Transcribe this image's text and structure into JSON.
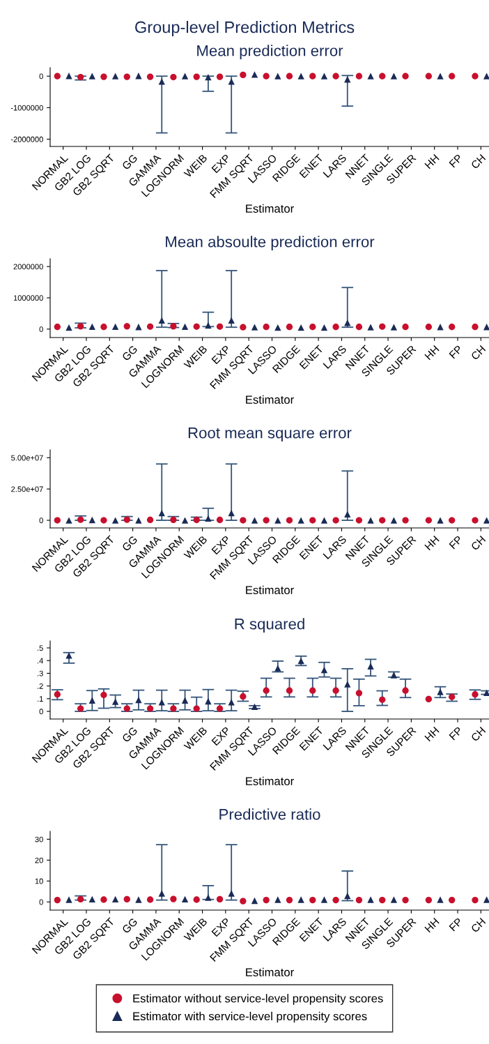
{
  "chart_data": [
    {
      "type": "scatter",
      "title": "Group-level Prediction Metrics",
      "subtitle": "Mean prediction error",
      "xlabel": "Estimator",
      "categories": [
        "NORMAL",
        "GB2 LOG",
        "GB2 SQRT",
        "GG",
        "GAMMA",
        "LOGNORM",
        "WEIB",
        "EXP",
        "FMM SQRT",
        "LASSO",
        "RIDGE",
        "ENET",
        "LARS",
        "NNET",
        "SINGLE",
        "SUPER",
        "HH",
        "FP",
        "CH"
      ],
      "ylim": [
        -2230000,
        270000
      ],
      "yticks": [
        0,
        -1000000,
        -2000000
      ],
      "grid": false,
      "legend": false,
      "series": [
        {
          "color": "#c8102e",
          "marker": "circle",
          "values": [
            0,
            -30000,
            -20000,
            -20000,
            -20000,
            -30000,
            -20000,
            -20000,
            40000,
            0,
            0,
            0,
            0,
            0,
            0,
            0,
            0,
            0,
            0
          ],
          "errors": [
            null,
            [
              -120000,
              0
            ],
            null,
            null,
            null,
            null,
            null,
            null,
            null,
            null,
            null,
            null,
            null,
            null,
            null,
            null,
            null,
            null,
            null
          ]
        },
        {
          "color": "#1a2b57",
          "marker": "triangle",
          "values": [
            10000,
            0,
            0,
            10000,
            -170000,
            0,
            -30000,
            -170000,
            50000,
            0,
            0,
            0,
            -100000,
            0,
            0,
            null,
            0,
            null,
            0
          ],
          "errors": [
            null,
            null,
            null,
            null,
            [
              -1800000,
              0
            ],
            null,
            [
              -480000,
              0
            ],
            [
              -1800000,
              0
            ],
            null,
            null,
            null,
            null,
            [
              -950000,
              20000
            ],
            null,
            null,
            null,
            null,
            null,
            null
          ]
        }
      ]
    },
    {
      "type": "scatter",
      "title": "Mean absoulte prediction error",
      "xlabel": "Estimator",
      "categories": [
        "NORMAL",
        "GB2 LOG",
        "GB2 SQRT",
        "GG",
        "GAMMA",
        "LOGNORM",
        "WEIB",
        "EXP",
        "FMM SQRT",
        "LASSO",
        "RIDGE",
        "ENET",
        "LARS",
        "NNET",
        "SINGLE",
        "SUPER",
        "HH",
        "FP",
        "CH"
      ],
      "ylim": [
        -270000,
        2250000
      ],
      "yticks": [
        0,
        1000000,
        2000000
      ],
      "grid": false,
      "legend": false,
      "series": [
        {
          "color": "#c8102e",
          "marker": "circle",
          "values": [
            70000,
            90000,
            70000,
            90000,
            80000,
            90000,
            80000,
            80000,
            60000,
            70000,
            70000,
            70000,
            70000,
            70000,
            80000,
            70000,
            70000,
            70000,
            70000
          ],
          "errors": [
            null,
            [
              40000,
              190000
            ],
            null,
            null,
            null,
            [
              50000,
              180000
            ],
            null,
            null,
            null,
            null,
            null,
            null,
            null,
            null,
            null,
            null,
            null,
            null,
            null
          ]
        },
        {
          "color": "#1a2b57",
          "marker": "triangle",
          "values": [
            50000,
            80000,
            80000,
            70000,
            280000,
            80000,
            120000,
            280000,
            60000,
            50000,
            50000,
            50000,
            200000,
            60000,
            60000,
            null,
            70000,
            null,
            70000
          ],
          "errors": [
            null,
            null,
            null,
            null,
            [
              60000,
              1870000
            ],
            null,
            [
              80000,
              540000
            ],
            [
              60000,
              1870000
            ],
            null,
            null,
            null,
            null,
            [
              60000,
              1330000
            ],
            null,
            null,
            null,
            null,
            null,
            null
          ]
        }
      ]
    },
    {
      "type": "scatter",
      "title": "Root mean square error",
      "xlabel": "Estimator",
      "categories": [
        "NORMAL",
        "GB2 LOG",
        "GB2 SQRT",
        "GG",
        "GAMMA",
        "LOGNORM",
        "WEIB",
        "EXP",
        "FMM SQRT",
        "LASSO",
        "RIDGE",
        "ENET",
        "LARS",
        "NNET",
        "SINGLE",
        "SUPER",
        "HH",
        "FP",
        "CH"
      ],
      "ylim": [
        -6100000,
        56300000
      ],
      "yticks": [
        0,
        {
          "value": 25000000,
          "label": "2.50e+07"
        },
        {
          "value": 50000000,
          "label": "5.00e+07"
        }
      ],
      "grid": false,
      "legend": false,
      "series": [
        {
          "color": "#c8102e",
          "marker": "circle",
          "values": [
            0,
            500000,
            0,
            500000,
            300000,
            400000,
            300000,
            300000,
            0,
            0,
            0,
            0,
            0,
            0,
            0,
            0,
            0,
            0,
            0
          ],
          "errors": [
            null,
            [
              0,
              3500000
            ],
            null,
            [
              0,
              3000000
            ],
            null,
            [
              0,
              3000000
            ],
            [
              0,
              2500000
            ],
            null,
            null,
            null,
            null,
            null,
            null,
            null,
            null,
            null,
            null,
            null,
            null
          ]
        },
        {
          "color": "#1a2b57",
          "marker": "triangle",
          "values": [
            0,
            300000,
            0,
            0,
            5800000,
            0,
            1500000,
            5800000,
            0,
            0,
            0,
            0,
            4800000,
            0,
            0,
            null,
            0,
            null,
            0
          ],
          "errors": [
            null,
            null,
            null,
            null,
            [
              0,
              45000000
            ],
            null,
            [
              0,
              9600000
            ],
            [
              0,
              45000000
            ],
            null,
            null,
            null,
            null,
            [
              0,
              39400000
            ],
            null,
            null,
            null,
            null,
            null,
            null
          ]
        }
      ]
    },
    {
      "type": "scatter",
      "title": "R squared",
      "xlabel": "Estimator",
      "categories": [
        "NORMAL",
        "GB2 LOG",
        "GB2 SQRT",
        "GG",
        "GAMMA",
        "LOGNORM",
        "WEIB",
        "EXP",
        "FMM SQRT",
        "LASSO",
        "RIDGE",
        "ENET",
        "LARS",
        "NNET",
        "SINGLE",
        "SUPER",
        "HH",
        "FP",
        "CH"
      ],
      "ylim": [
        -0.06,
        0.555
      ],
      "yticks": [
        0,
        {
          "value": 0.1,
          "label": ".1"
        },
        {
          "value": 0.2,
          "label": ".2"
        },
        {
          "value": 0.3,
          "label": ".3"
        },
        {
          "value": 0.4,
          "label": ".4"
        },
        {
          "value": 0.5,
          "label": ".5"
        }
      ],
      "grid": false,
      "legend": false,
      "series": [
        {
          "color": "#c8102e",
          "marker": "circle",
          "values": [
            0.134,
            0.022,
            0.129,
            0.022,
            0.022,
            0.022,
            0.022,
            0.022,
            0.117,
            0.164,
            0.164,
            0.164,
            0.164,
            0.144,
            0.092,
            0.164,
            0.097,
            0.114,
            0.134
          ],
          "errors": [
            [
              0.092,
              0.17
            ],
            [
              0,
              0.06
            ],
            [
              0.025,
              0.177
            ],
            [
              0,
              0.06
            ],
            [
              0,
              0.06
            ],
            [
              0,
              0.06
            ],
            [
              0,
              0.112
            ],
            [
              0,
              0.06
            ],
            [
              0.08,
              0.159
            ],
            [
              0.114,
              0.261
            ],
            [
              0.114,
              0.261
            ],
            [
              0.114,
              0.261
            ],
            [
              0.114,
              0.261
            ],
            [
              0.045,
              0.254
            ],
            [
              0.047,
              0.162
            ],
            [
              0.109,
              0.254
            ],
            null,
            [
              0.08,
              0.137
            ],
            [
              0.095,
              0.169
            ]
          ]
        },
        {
          "color": "#1a2b57",
          "marker": "triangle",
          "values": [
            0.44,
            0.087,
            0.077,
            0.09,
            0.072,
            0.087,
            0.08,
            0.072,
            0.037,
            0.34,
            0.398,
            0.326,
            0.214,
            0.356,
            0.286,
            null,
            0.154,
            null,
            0.147
          ],
          "errors": [
            [
              0.38,
              0.463
            ],
            [
              0.007,
              0.164
            ],
            [
              0.03,
              0.129
            ],
            [
              0.012,
              0.167
            ],
            [
              0.005,
              0.167
            ],
            [
              0.012,
              0.167
            ],
            [
              0.005,
              0.172
            ],
            [
              0.005,
              0.167
            ],
            [
              0.022,
              0.045
            ],
            [
              0.311,
              0.396
            ],
            [
              0.361,
              0.435
            ],
            [
              0.271,
              0.386
            ],
            [
              0,
              0.336
            ],
            [
              0.279,
              0.41
            ],
            [
              0.269,
              0.311
            ],
            null,
            [
              0.109,
              0.194
            ],
            null,
            [
              0.134,
              0.162
            ]
          ]
        }
      ]
    },
    {
      "type": "scatter",
      "title": "Predictive ratio",
      "xlabel": "Estimator",
      "categories": [
        "NORMAL",
        "GB2 LOG",
        "GB2 SQRT",
        "GG",
        "GAMMA",
        "LOGNORM",
        "WEIB",
        "EXP",
        "FMM SQRT",
        "LASSO",
        "RIDGE",
        "ENET",
        "LARS",
        "NNET",
        "SINGLE",
        "SUPER",
        "HH",
        "FP",
        "CH"
      ],
      "ylim": [
        -3.9,
        33.8
      ],
      "yticks": [
        0,
        10,
        20,
        30
      ],
      "grid": false,
      "legend": "bottom",
      "series": [
        {
          "name": "Estimator without service-level propensity scores",
          "color": "#c8102e",
          "marker": "circle",
          "values": [
            0.9,
            1.3,
            1.1,
            1.3,
            1.1,
            1.4,
            1.1,
            1.3,
            0.4,
            0.9,
            0.9,
            0.9,
            0.9,
            0.9,
            0.9,
            0.9,
            0.9,
            0.9,
            0.9
          ],
          "errors": [
            null,
            [
              0.9,
              2.9
            ],
            null,
            null,
            null,
            null,
            null,
            null,
            null,
            null,
            null,
            null,
            null,
            null,
            null,
            null,
            null,
            null,
            null
          ]
        },
        {
          "name": "Estimator with service-level propensity scores",
          "color": "#1a2b57",
          "marker": "triangle",
          "values": [
            1.1,
            1.3,
            1.3,
            1.1,
            4.1,
            1.3,
            2.1,
            4.1,
            0.6,
            1.1,
            1.1,
            1.1,
            2.9,
            1.1,
            1.1,
            null,
            1.1,
            null,
            1.1
          ],
          "errors": [
            null,
            null,
            null,
            null,
            [
              0.9,
              27.4
            ],
            null,
            [
              1.2,
              7.8
            ],
            [
              0.9,
              27.4
            ],
            null,
            null,
            null,
            null,
            [
              0.6,
              14.8
            ],
            null,
            null,
            null,
            null,
            null,
            null
          ]
        }
      ]
    }
  ]
}
